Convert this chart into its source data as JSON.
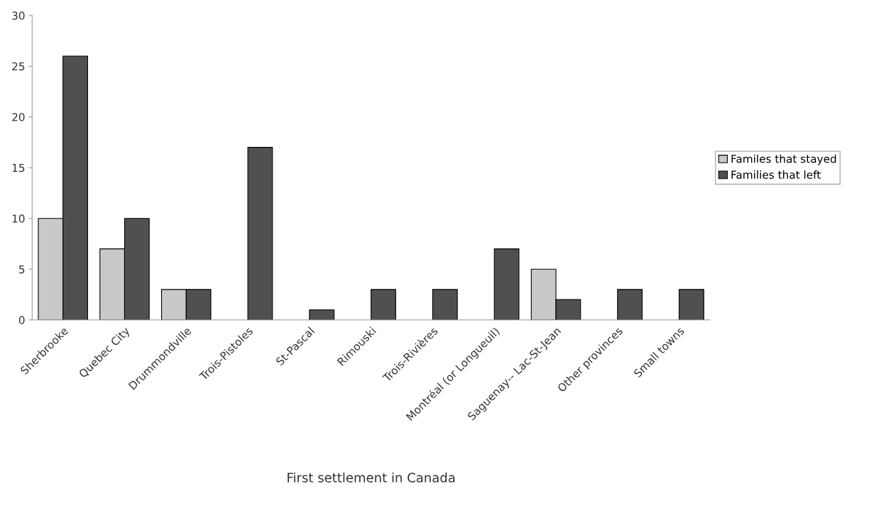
{
  "chart_data": {
    "type": "bar",
    "xlabel": "First settlement in Canada",
    "categories": [
      "Sherbrooke",
      "Quebec City",
      "Drummondville",
      "Trois-Pistoles",
      "St-Pascal",
      "Rimouski",
      "Trois-Rivières",
      "Montréal (or Longueuil)",
      "Saguenay-- Lac-St-Jean",
      "Other provinces",
      "Small towns"
    ],
    "series": [
      {
        "name": "Familes that stayed",
        "color": "#c9c9c9",
        "values": [
          10,
          7,
          3,
          null,
          null,
          null,
          null,
          null,
          5,
          null,
          null
        ]
      },
      {
        "name": "Families that left",
        "color": "#505050",
        "values": [
          26,
          10,
          3,
          17,
          1,
          3,
          3,
          7,
          2,
          3,
          3
        ]
      }
    ],
    "ylim": [
      0,
      30
    ],
    "yticks": [
      0,
      5,
      10,
      15,
      20,
      25,
      30
    ],
    "grid": false,
    "legend": "right"
  }
}
